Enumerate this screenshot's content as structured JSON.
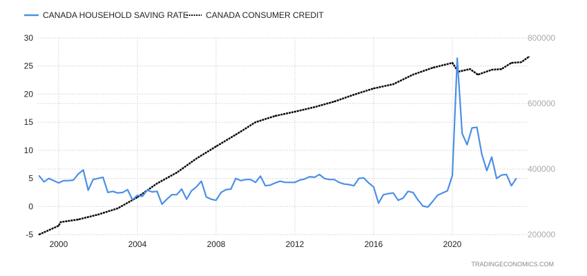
{
  "chart_data": {
    "type": "line",
    "title": "",
    "watermark": "TRADINGECONOMICS.COM",
    "legend_position": "top-left",
    "grid": true,
    "x_range": [
      1998.95,
      2023.86
    ],
    "x_ticks": [
      "2000",
      "2004",
      "2008",
      "2012",
      "2016",
      "2020"
    ],
    "y_left": {
      "range": [
        -5,
        30
      ],
      "ticks": [
        "30",
        "25",
        "20",
        "15",
        "10",
        "5",
        "0",
        "-5"
      ]
    },
    "y_right": {
      "range": [
        200000,
        800000
      ],
      "ticks": [
        "800000",
        "600000",
        "400000",
        "200000"
      ]
    },
    "series": [
      {
        "name": "CANADA HOUSEHOLD SAVING RATE",
        "axis": "left",
        "color": "#4a8fe7",
        "style": "solid",
        "x_start": 1999.0,
        "x_step": 0.25,
        "values": [
          5.5,
          4.4,
          5.0,
          4.6,
          4.2,
          4.6,
          4.6,
          4.7,
          5.8,
          6.5,
          2.9,
          4.8,
          5.0,
          5.2,
          2.5,
          2.7,
          2.4,
          2.5,
          3.0,
          1.2,
          2.0,
          1.8,
          2.9,
          2.6,
          2.7,
          0.4,
          1.3,
          2.1,
          2.1,
          3.1,
          1.3,
          2.8,
          3.5,
          4.5,
          1.7,
          1.3,
          1.1,
          2.5,
          3.0,
          3.1,
          5.0,
          4.6,
          4.8,
          4.8,
          4.3,
          5.4,
          3.7,
          3.8,
          4.2,
          4.5,
          4.3,
          4.3,
          4.3,
          4.7,
          4.9,
          5.3,
          5.2,
          5.7,
          5.0,
          4.8,
          4.8,
          4.3,
          4.0,
          3.9,
          3.7,
          5.0,
          5.1,
          4.2,
          3.5,
          0.6,
          2.1,
          2.3,
          2.4,
          1.1,
          1.5,
          2.7,
          2.5,
          1.2,
          0.1,
          -0.1,
          0.9,
          2.0,
          2.4,
          2.8,
          5.5,
          26.4,
          13.0,
          11.0,
          14.0,
          14.1,
          9.3,
          6.4,
          8.8,
          5.0,
          5.6,
          5.7,
          3.7,
          5.0
        ]
      },
      {
        "name": "CANADA CONSUMER CREDIT",
        "axis": "right",
        "color": "#000000",
        "style": "dotted",
        "x": [
          1999.0,
          2000.0,
          2000.1,
          2001,
          2002,
          2003,
          2004,
          2005,
          2006,
          2007,
          2008,
          2009,
          2010,
          2011,
          2012,
          2013,
          2014,
          2015,
          2016,
          2017,
          2018,
          2019,
          2020.0,
          2020.3,
          2020.9,
          2021.3,
          2022.0,
          2022.5,
          2023.0,
          2023.5,
          2023.9
        ],
        "values": [
          200000,
          227000,
          238000,
          246000,
          261000,
          280000,
          314000,
          356000,
          389000,
          432000,
          469000,
          505000,
          543000,
          562000,
          575000,
          589000,
          606000,
          627000,
          646000,
          659000,
          688000,
          709000,
          724000,
          697000,
          705000,
          688000,
          703000,
          705000,
          724000,
          726000,
          743000
        ]
      }
    ]
  }
}
